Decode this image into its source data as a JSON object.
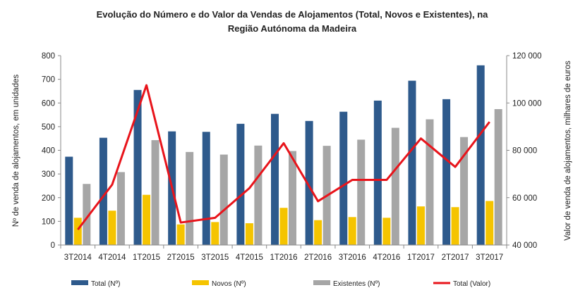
{
  "chart_data": {
    "type": "bar",
    "title": "Evolução do Número e do Valor da Vendas de Alojamentos (Total, Novos e Existentes), na",
    "subtitle": "Região Autónoma da Madeira",
    "ylabel": "Nº de venda de alojamentos, em unidades",
    "y2label": "Valor de venda de alojamentos, milhares de euros",
    "categories": [
      "3T2014",
      "4T2014",
      "1T2015",
      "2T2015",
      "3T2015",
      "4T2015",
      "1T2016",
      "2T2016",
      "3T2016",
      "4T2016",
      "1T2017",
      "2T2017",
      "3T2017"
    ],
    "ylim": [
      0,
      800
    ],
    "yticks": [
      "0",
      "100",
      "200",
      "300",
      "400",
      "500",
      "600",
      "700",
      "800"
    ],
    "y2lim": [
      40000,
      120000
    ],
    "y2ticks": [
      "40 000",
      "60 000",
      "80 000",
      "100 000",
      "120 000"
    ],
    "y2tick_values": [
      40000,
      60000,
      80000,
      100000,
      120000
    ],
    "grid": false,
    "legend_position": "bottom",
    "series": [
      {
        "name": "Total (Nº)",
        "type": "bar",
        "axis": "left",
        "color": "#2E5A8C",
        "values": [
          373,
          453,
          655,
          480,
          478,
          512,
          554,
          524,
          563,
          610,
          694,
          616,
          759
        ]
      },
      {
        "name": "Novos (Nº)",
        "type": "bar",
        "axis": "left",
        "color": "#F5C400",
        "values": [
          115,
          145,
          212,
          87,
          97,
          92,
          157,
          105,
          118,
          115,
          163,
          160,
          186
        ]
      },
      {
        "name": "Existentes (Nº)",
        "type": "bar",
        "axis": "left",
        "color": "#A6A6A6",
        "values": [
          258,
          308,
          443,
          393,
          382,
          420,
          397,
          419,
          445,
          495,
          531,
          456,
          574
        ]
      },
      {
        "name": "Total (Valor)",
        "type": "line",
        "axis": "right",
        "color": "#E8141B",
        "values": [
          46500,
          65500,
          107500,
          49500,
          51500,
          64000,
          83000,
          58500,
          67500,
          67500,
          85000,
          73000,
          92000
        ]
      }
    ]
  }
}
